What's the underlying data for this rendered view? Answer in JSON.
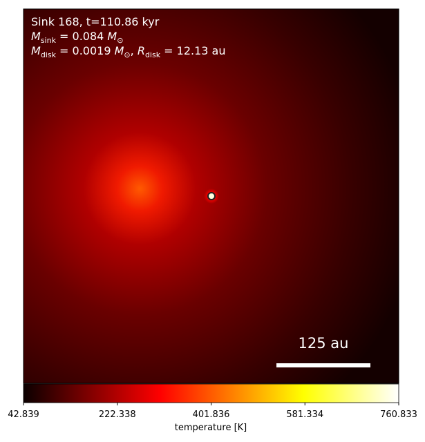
{
  "chart_data": {
    "type": "image",
    "annotation_lines": [
      [
        {
          "text": "Sink 168, t=110.86 kyr",
          "style": "normal"
        }
      ],
      [
        {
          "text": "M",
          "style": "italic"
        },
        {
          "text": "sink",
          "style": "sub"
        },
        {
          "text": " = 0.084 ",
          "style": "normal"
        },
        {
          "text": "M",
          "style": "italic"
        },
        {
          "text": "⊙",
          "style": "sub"
        }
      ],
      [
        {
          "text": "M",
          "style": "italic"
        },
        {
          "text": "disk",
          "style": "sub"
        },
        {
          "text": " = 0.0019 ",
          "style": "normal"
        },
        {
          "text": "M",
          "style": "italic"
        },
        {
          "text": "⊙",
          "style": "sub"
        },
        {
          "text": ", ",
          "style": "normal"
        },
        {
          "text": "R",
          "style": "italic"
        },
        {
          "text": "disk",
          "style": "sub"
        },
        {
          "text": " = 12.13 au",
          "style": "normal"
        }
      ]
    ],
    "scale_bar_label": "125 au",
    "colormap": "hot",
    "colorbar_label": "temperature [K]",
    "clim": [
      42.839,
      760.833
    ],
    "cticks": [
      42.839,
      222.338,
      401.836,
      581.334,
      760.833
    ]
  }
}
